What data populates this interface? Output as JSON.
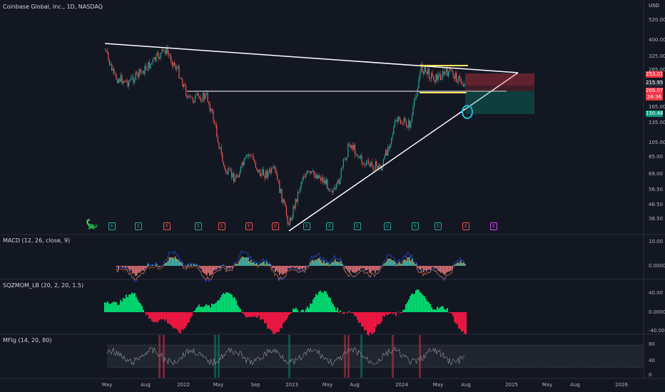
{
  "header": {
    "symbol_title": "Coinbase Global, Inc., 1D, NASDAQ",
    "currency": "USD"
  },
  "price_axis": {
    "labels": [
      "520.00",
      "400.00",
      "325.00",
      "265.00",
      "215.95",
      "165.00",
      "135.00",
      "105.00",
      "85.00",
      "69.00",
      "56.50",
      "46.50",
      "38.50"
    ]
  },
  "price_tags": [
    {
      "text": "253.01",
      "color": "#f23645"
    },
    {
      "text": "215.95",
      "color": "#2a2e39"
    },
    {
      "text": "205.07",
      "color": "#f23645"
    },
    {
      "text": "26:36",
      "color": "#f23645"
    },
    {
      "text": "150.46",
      "color": "#089981"
    }
  ],
  "macd": {
    "title": "MACD (12, 26, close, 9)",
    "axis_labels": [
      "10.00",
      "0.0000"
    ]
  },
  "sqzmom": {
    "title": "SQZMOM_LB (20, 2, 20, 1.5)",
    "axis_labels": [
      "40.00",
      "0.0000",
      "-40.00"
    ]
  },
  "mfi": {
    "title": "MFIg (14, 20, 80)",
    "axis_labels": [
      "80",
      "40",
      "0"
    ]
  },
  "time_axis": {
    "labels": [
      "May",
      "Aug",
      "2022",
      "May",
      "Sep",
      "2023",
      "May",
      "Aug",
      "2024",
      "May",
      "Aug",
      "2025",
      "May",
      "Aug",
      "2026"
    ]
  },
  "events": {
    "labels": [
      "E",
      "E",
      "E",
      "E",
      "E",
      "E",
      "E",
      "E",
      "E",
      "E",
      "E",
      "E",
      "E",
      "E",
      "E",
      "E"
    ]
  },
  "colors": {
    "background": "#131722",
    "bull": "#26a69a",
    "bear": "#ef5350",
    "trendline": "#ffffff",
    "highlight": "#f5e663",
    "circle": "#22c4e0",
    "macd_line": "#2962ff",
    "signal_line": "#ff6d00",
    "squeeze_up": "#00e676",
    "squeeze_down": "#ff1744"
  },
  "icons": {
    "logo": "dinosaur-logo-icon"
  }
}
